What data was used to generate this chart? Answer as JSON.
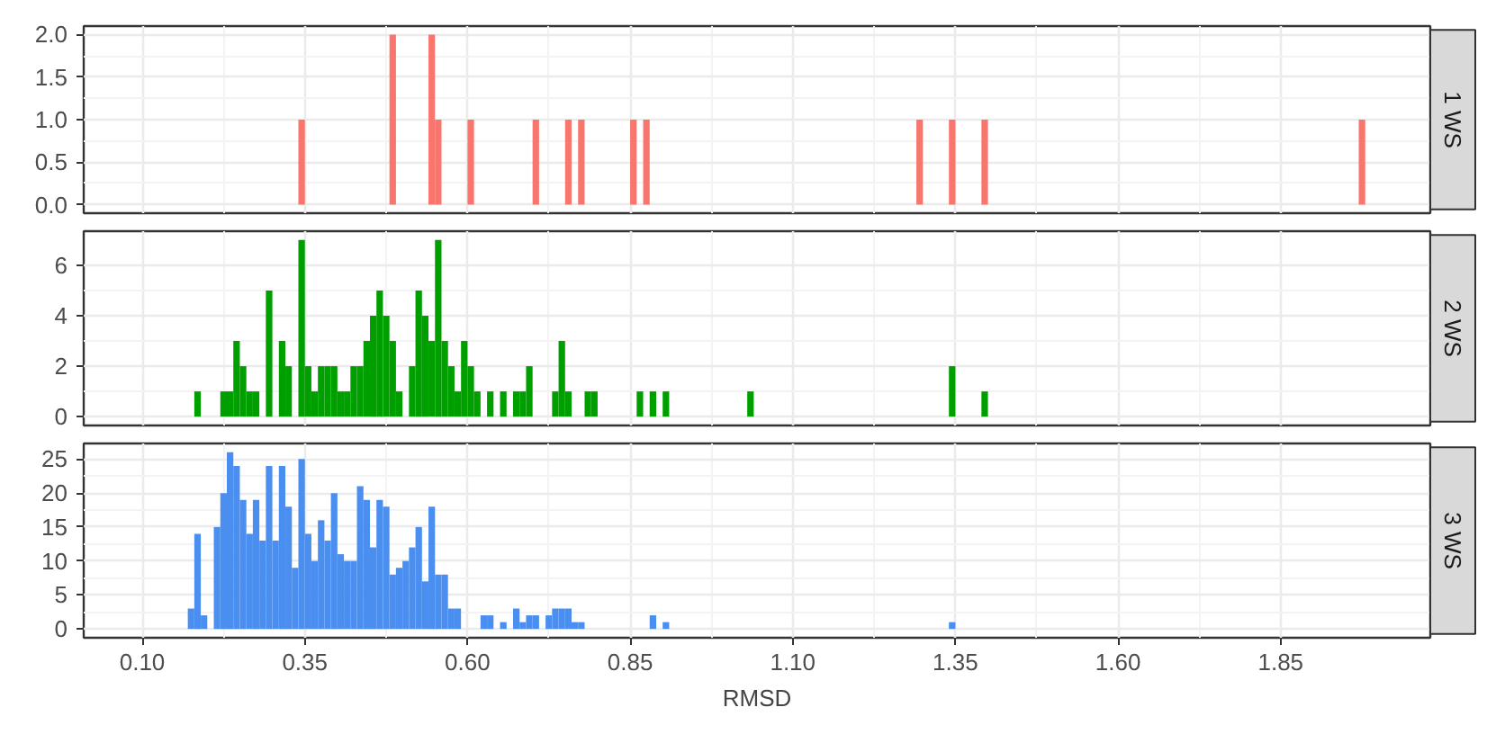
{
  "chart_data": [
    {
      "type": "histogram",
      "title": "1 WS",
      "color": "#f8766d",
      "grid": true,
      "tick_labels": "y",
      "xlim": [
        0.01,
        2.08
      ],
      "xticks": [
        0.1,
        0.35,
        0.6,
        0.85,
        1.1,
        1.35,
        1.6,
        1.85
      ],
      "ylim": [
        -0.1,
        2.1
      ],
      "yticks": [
        {
          "value": 0,
          "label": "0.0"
        },
        0.5,
        {
          "value": 1,
          "label": "1.0"
        },
        1.5,
        {
          "value": 2,
          "label": "2.0"
        }
      ],
      "bins": [
        0.34,
        0.35,
        0.48,
        0.49,
        0.54,
        0.55,
        0.56,
        0.6,
        0.61,
        0.7,
        0.71,
        0.75,
        0.76,
        0.77,
        0.78,
        0.85,
        0.86,
        0.87,
        0.88,
        1.29,
        1.3,
        1.34,
        1.35,
        1.39,
        1.4,
        1.97,
        1.98
      ],
      "values": [
        1,
        0,
        2,
        0,
        2,
        1,
        0,
        1,
        0,
        1,
        0,
        1,
        0,
        1,
        0,
        1,
        0,
        1,
        0,
        1,
        0,
        1,
        0,
        1,
        0,
        1
      ]
    },
    {
      "type": "histogram",
      "title": "2 WS",
      "color": "#009f00",
      "grid": true,
      "tick_labels": "y",
      "xlim": [
        0.01,
        2.08
      ],
      "xticks": [
        0.1,
        0.35,
        0.6,
        0.85,
        1.1,
        1.35,
        1.6,
        1.85
      ],
      "ylim": [
        -0.35,
        7.35
      ],
      "yticks": [
        0,
        2,
        4,
        6
      ],
      "bins": [
        0.18,
        0.19,
        0.22,
        0.23,
        0.24,
        0.25,
        0.26,
        0.27,
        0.28,
        0.29,
        0.3,
        0.31,
        0.32,
        0.33,
        0.34,
        0.35,
        0.36,
        0.37,
        0.38,
        0.39,
        0.4,
        0.41,
        0.42,
        0.43,
        0.44,
        0.45,
        0.46,
        0.47,
        0.48,
        0.49,
        0.5,
        0.51,
        0.52,
        0.53,
        0.54,
        0.55,
        0.56,
        0.57,
        0.58,
        0.59,
        0.6,
        0.61,
        0.62,
        0.63,
        0.64,
        0.65,
        0.66,
        0.67,
        0.68,
        0.69,
        0.7,
        0.73,
        0.74,
        0.75,
        0.76,
        0.78,
        0.79,
        0.8,
        0.86,
        0.87,
        0.88,
        0.89,
        0.9,
        0.91,
        1.03,
        1.04,
        1.34,
        1.35,
        1.39,
        1.4
      ],
      "values": [
        1,
        0,
        1,
        1,
        3,
        2,
        1,
        1,
        0,
        5,
        0,
        3,
        2,
        0,
        7,
        2,
        1,
        2,
        2,
        2,
        1,
        1,
        2,
        2,
        3,
        4,
        5,
        4,
        3,
        1,
        0,
        2,
        5,
        4,
        3,
        7,
        3,
        2,
        1,
        3,
        2,
        1,
        0,
        1,
        0,
        1,
        0,
        1,
        1,
        2,
        0,
        1,
        3,
        1,
        0,
        1,
        1,
        0,
        1,
        0,
        1,
        0,
        1,
        0,
        1,
        0,
        2,
        0,
        1
      ]
    },
    {
      "type": "histogram",
      "title": "3 WS",
      "xlabel": "RMSD",
      "color": "#4a8ff0",
      "grid": true,
      "xlim": [
        0.01,
        2.08
      ],
      "xticks": [
        {
          "value": 0.1,
          "label": "0.10"
        },
        0.35,
        {
          "value": 0.6,
          "label": "0.60"
        },
        0.85,
        {
          "value": 1.1,
          "label": "1.10"
        },
        1.35,
        {
          "value": 1.6,
          "label": "1.60"
        },
        1.85
      ],
      "ylim": [
        -1.3,
        27.3
      ],
      "yticks": [
        0,
        5,
        10,
        15,
        20,
        25
      ],
      "bins": [
        0.17,
        0.18,
        0.19,
        0.2,
        0.21,
        0.22,
        0.23,
        0.24,
        0.25,
        0.26,
        0.27,
        0.28,
        0.29,
        0.3,
        0.31,
        0.32,
        0.33,
        0.34,
        0.35,
        0.36,
        0.37,
        0.38,
        0.39,
        0.4,
        0.41,
        0.42,
        0.43,
        0.44,
        0.45,
        0.46,
        0.47,
        0.48,
        0.49,
        0.5,
        0.51,
        0.52,
        0.53,
        0.54,
        0.55,
        0.56,
        0.57,
        0.58,
        0.59,
        0.62,
        0.63,
        0.64,
        0.65,
        0.66,
        0.67,
        0.68,
        0.69,
        0.7,
        0.71,
        0.72,
        0.73,
        0.74,
        0.75,
        0.76,
        0.77,
        0.78,
        0.88,
        0.89,
        0.9,
        0.91,
        1.34,
        1.35
      ],
      "values": [
        3,
        14,
        2,
        0,
        15,
        20,
        26,
        24,
        19,
        14,
        19,
        13,
        24,
        13,
        24,
        18,
        9,
        25,
        14,
        10,
        16,
        13,
        20,
        11,
        10,
        10,
        21,
        19,
        12,
        19,
        18,
        8,
        9,
        10,
        12,
        15,
        7,
        18,
        8,
        8,
        3,
        3,
        0,
        2,
        2,
        0,
        1,
        0,
        3,
        1,
        2,
        2,
        0,
        2,
        3,
        3,
        3,
        1,
        1,
        0,
        2,
        0,
        1,
        0,
        1
      ]
    }
  ]
}
